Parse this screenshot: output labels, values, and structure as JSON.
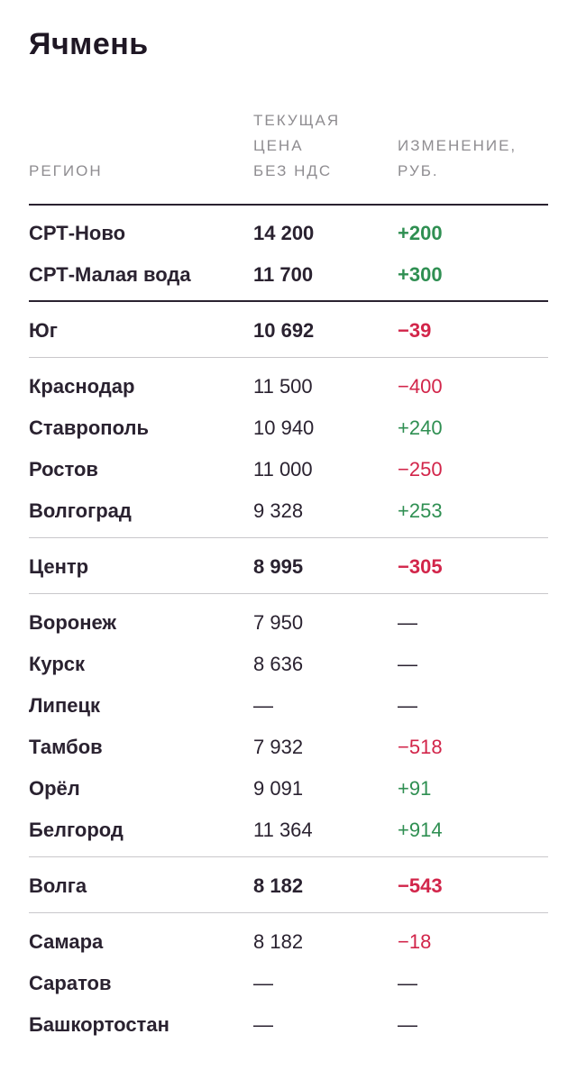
{
  "title": "Ячмень",
  "header": {
    "region": "РЕГИОН",
    "price_line1": "ТЕКУЩАЯ",
    "price_line2": "ЦЕНА",
    "price_line3": "БЕЗ НДС",
    "change_line1": "ИЗМЕНЕНИЕ,",
    "change_line2": "РУБ."
  },
  "rows": [
    {
      "region": "СРТ-Ново",
      "price": "14 200",
      "change": "+200",
      "trend": "up",
      "bold": true
    },
    {
      "region": "СРТ-Малая вода",
      "price": "11 700",
      "change": "+300",
      "trend": "up",
      "bold": true
    },
    {
      "region": "Юг",
      "price": "10 692",
      "change": "−39",
      "trend": "down",
      "bold": true
    },
    {
      "region": "Краснодар",
      "price": "11 500",
      "change": "−400",
      "trend": "down",
      "bold": false
    },
    {
      "region": "Ставрополь",
      "price": "10 940",
      "change": "+240",
      "trend": "up",
      "bold": false
    },
    {
      "region": "Ростов",
      "price": "11 000",
      "change": "−250",
      "trend": "down",
      "bold": false
    },
    {
      "region": "Волгоград",
      "price": "9 328",
      "change": "+253",
      "trend": "up",
      "bold": false
    },
    {
      "region": "Центр",
      "price": "8 995",
      "change": "−305",
      "trend": "down",
      "bold": true
    },
    {
      "region": "Воронеж",
      "price": "7 950",
      "change": "—",
      "trend": "none",
      "bold": false
    },
    {
      "region": "Курск",
      "price": "8 636",
      "change": "—",
      "trend": "none",
      "bold": false
    },
    {
      "region": "Липецк",
      "price": "—",
      "change": "—",
      "trend": "none",
      "bold": false
    },
    {
      "region": "Тамбов",
      "price": "7 932",
      "change": "−518",
      "trend": "down",
      "bold": false
    },
    {
      "region": "Орёл",
      "price": "9 091",
      "change": "+91",
      "trend": "up",
      "bold": false
    },
    {
      "region": "Белгород",
      "price": "11 364",
      "change": "+914",
      "trend": "up",
      "bold": false
    },
    {
      "region": "Волга",
      "price": "8 182",
      "change": "−543",
      "trend": "down",
      "bold": true
    },
    {
      "region": "Самара",
      "price": "8 182",
      "change": "−18",
      "trend": "down",
      "bold": false
    },
    {
      "region": "Саратов",
      "price": "—",
      "change": "—",
      "trend": "none",
      "bold": false
    },
    {
      "region": "Башкортостан",
      "price": "—",
      "change": "—",
      "trend": "none",
      "bold": false
    }
  ],
  "colors": {
    "up": "#2f8f52",
    "down": "#d2254a",
    "text": "#2a2230",
    "header": "#8f8d91"
  }
}
